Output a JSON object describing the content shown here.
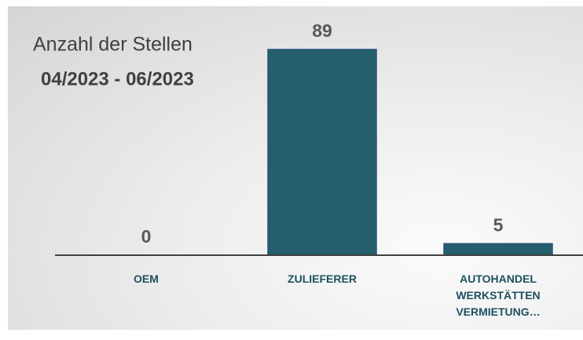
{
  "chart_data": {
    "type": "bar",
    "title": "Anzahl der Stellen",
    "subtitle": "04/2023 - 06/2023",
    "categories": [
      "OEM",
      "ZULIEFERER",
      "AUTOHANDEL WERKSTÄTTEN VERMIETUNG…"
    ],
    "values": [
      0,
      89,
      5
    ],
    "color": "#255e6c"
  }
}
